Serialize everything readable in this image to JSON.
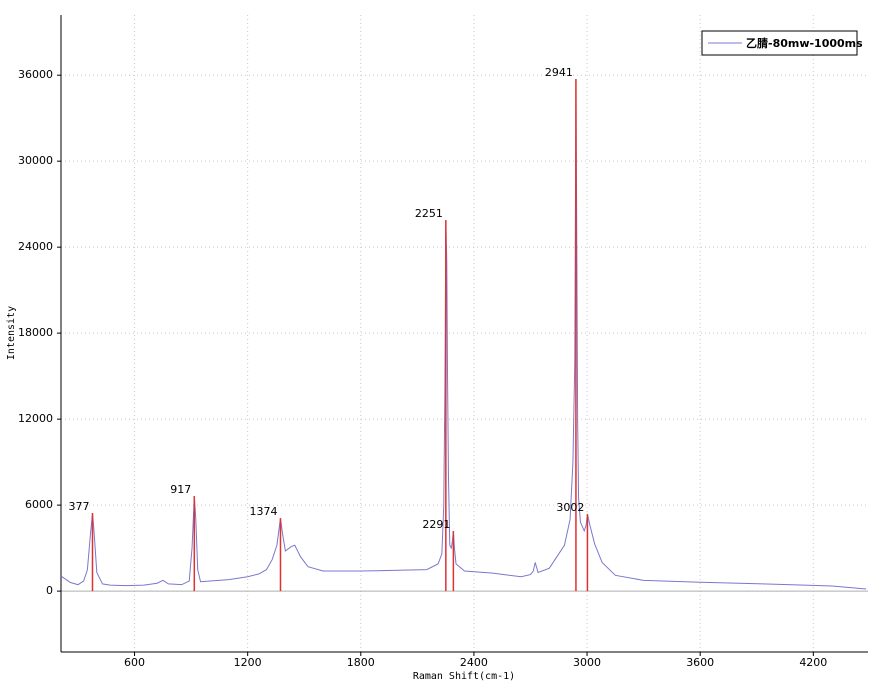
{
  "chart_data": {
    "type": "line",
    "xlabel": "Raman Shift(cm-1)",
    "ylabel": "Intensity",
    "x": [
      210,
      260,
      300,
      330,
      350,
      365,
      377,
      385,
      400,
      430,
      470,
      550,
      650,
      720,
      750,
      780,
      850,
      890,
      905,
      917,
      925,
      935,
      950,
      1000,
      1100,
      1200,
      1260,
      1300,
      1330,
      1355,
      1374,
      1385,
      1400,
      1430,
      1450,
      1480,
      1520,
      1600,
      1800,
      2000,
      2150,
      2210,
      2230,
      2240,
      2246,
      2251,
      2256,
      2260,
      2265,
      2272,
      2280,
      2286,
      2291,
      2296,
      2305,
      2350,
      2500,
      2650,
      2700,
      2715,
      2725,
      2740,
      2800,
      2840,
      2880,
      2910,
      2925,
      2935,
      2941,
      2946,
      2950,
      2955,
      2965,
      2985,
      2995,
      3002,
      3015,
      3040,
      3080,
      3150,
      3300,
      3600,
      4000,
      4300,
      4480
    ],
    "series": [
      {
        "name": "乙腈-80mw-1000ms",
        "color": "#7a78cc",
        "values": [
          1050,
          600,
          450,
          700,
          1500,
          3800,
          5450,
          4200,
          1300,
          500,
          420,
          380,
          420,
          550,
          750,
          500,
          450,
          700,
          3000,
          6630,
          5000,
          1500,
          650,
          700,
          800,
          1000,
          1200,
          1500,
          2200,
          3200,
          5090,
          4000,
          2800,
          3100,
          3200,
          2400,
          1700,
          1400,
          1400,
          1450,
          1500,
          1900,
          2600,
          6000,
          14000,
          25890,
          23000,
          15000,
          8000,
          3200,
          3000,
          3500,
          4190,
          3100,
          1900,
          1400,
          1250,
          1000,
          1150,
          1400,
          2000,
          1300,
          1600,
          2400,
          3200,
          5000,
          9000,
          16000,
          35730,
          23000,
          12000,
          6500,
          4800,
          4200,
          4600,
          5370,
          4600,
          3300,
          2000,
          1100,
          750,
          620,
          480,
          360,
          150
        ]
      }
    ],
    "markers": {
      "x": [
        377,
        917,
        1374,
        2251,
        2291,
        2941,
        3002
      ],
      "values": [
        5450,
        6630,
        5090,
        25890,
        4190,
        35730,
        5370
      ],
      "color": "#e0302f"
    },
    "xlim": [
      210,
      4490
    ],
    "ylim": [
      -4250,
      40200
    ],
    "xticks": [
      600,
      1200,
      1800,
      2400,
      3000,
      3600,
      4200
    ],
    "yticks": [
      0,
      6000,
      12000,
      18000,
      24000,
      30000,
      36000
    ],
    "grid": true,
    "legend": "upper right"
  }
}
